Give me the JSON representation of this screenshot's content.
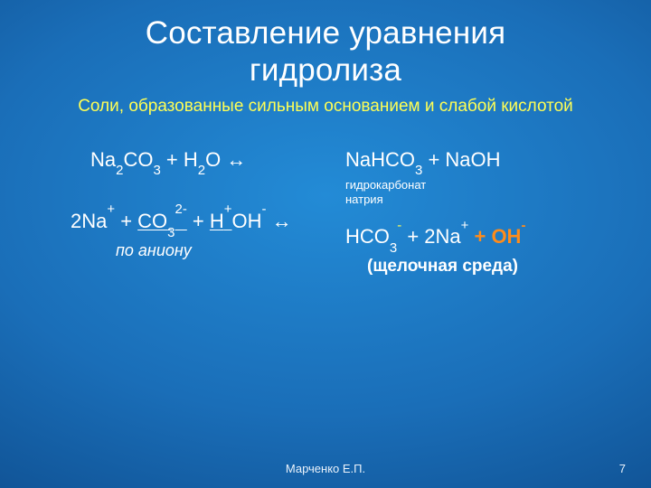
{
  "colors": {
    "background_gradient": [
      "#238bd6",
      "#1a6eb8",
      "#0d4a8a",
      "#073a72"
    ],
    "text": "#ffffff",
    "accent_yellow": "#ffff55",
    "accent_orange": "#ff8c1a"
  },
  "typography": {
    "title_fontsize": 35,
    "subtitle_fontsize": 19,
    "body_fontsize": 22,
    "smallnote_fontsize": 13,
    "note_fontsize": 18,
    "footer_fontsize": 13
  },
  "title_line1": "Составление уравнения",
  "title_line2": "гидролиза",
  "subtitle": "Соли, образованные сильным основанием и слабой кислотой",
  "left": {
    "eq1_prefix": "Na",
    "eq1_sub1": "2",
    "eq1_mid": "CO",
    "eq1_sub2": "3",
    "eq1_plus": " + H",
    "eq1_sub3": "2",
    "eq1_tail": "O ↔",
    "eq2_prefix": "2Na",
    "eq2_sup1": "+",
    "eq2_plus1": " + ",
    "eq2_co": "CO",
    "eq2_sub4": "3",
    "eq2_sup2": "2-",
    "eq2_plus2": " + ",
    "eq2_h": "H",
    "eq2_sup3": "+",
    "eq2_oh": "OH",
    "eq2_sup4": "-",
    "eq2_tail": " ↔",
    "note": "по аниону"
  },
  "right": {
    "eq1_a": "NaHCO",
    "eq1_sub1": "3",
    "eq1_b": " + NaOH",
    "eq1_note_l1": "гидрокарбонат",
    "eq1_note_l2": "натрия",
    "eq2_a": "HCO",
    "eq2_sub1": "3",
    "eq2_sup1": "-",
    "eq2_b": " + 2Na",
    "eq2_sup2": "+",
    "eq2_c": " + OH",
    "eq2_sup3": "-",
    "note": "(щелочная среда)"
  },
  "footer": {
    "author": "Марченко Е.П.",
    "page": "7"
  }
}
